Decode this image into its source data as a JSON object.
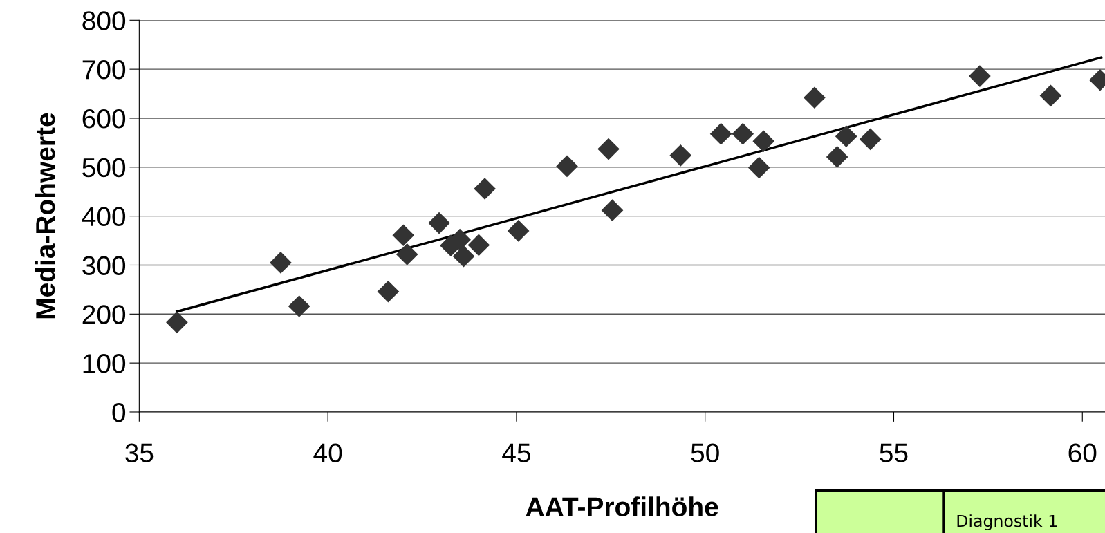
{
  "chart_data": {
    "type": "scatter",
    "xlabel": "AAT-Profilhöhe",
    "ylabel": "Media-Rohwerte",
    "xlim": [
      35,
      60.6
    ],
    "xticks": [
      35,
      40,
      45,
      50,
      55,
      60
    ],
    "ylim": [
      0,
      800
    ],
    "yticks": [
      0,
      100,
      200,
      300,
      400,
      500,
      600,
      700,
      800
    ],
    "grid": "y",
    "legend": false,
    "annotations": [
      "Diagnostik 1"
    ],
    "series": [
      {
        "marker": "diamond",
        "color": "#333333",
        "x": [
          36.0,
          38.75,
          39.24,
          41.6,
          42.0,
          42.1,
          42.95,
          43.26,
          43.5,
          43.6,
          44.0,
          44.16,
          45.05,
          46.34,
          47.44,
          47.54,
          49.35,
          50.42,
          51.0,
          51.43,
          51.55,
          52.9,
          53.5,
          53.74,
          54.38,
          57.28,
          59.16,
          60.47
        ],
        "values": [
          183,
          305,
          216,
          246,
          361,
          322,
          386,
          340,
          352,
          318,
          341,
          456,
          370,
          502,
          537,
          412,
          524,
          568,
          568,
          499,
          553,
          642,
          521,
          563,
          557,
          686,
          646,
          678
        ]
      },
      {
        "type": "line",
        "color": "#000000",
        "x": [
          36.0,
          60.5
        ],
        "values": [
          205,
          724
        ]
      }
    ]
  }
}
